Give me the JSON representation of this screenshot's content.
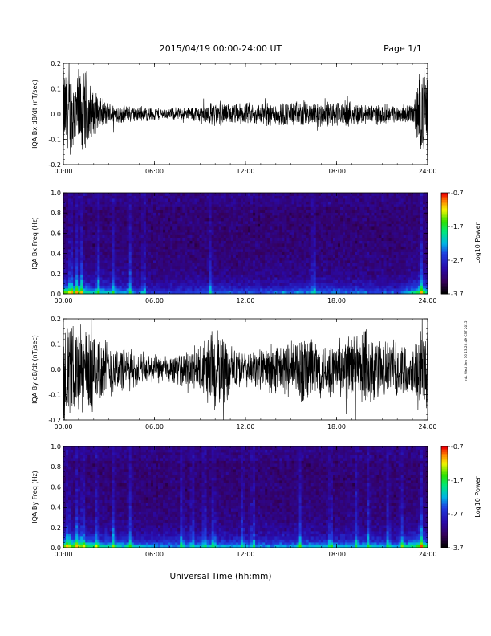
{
  "header": {
    "date_range": "2015/04/19  00:00-24:00 UT",
    "page": "Page 1/1"
  },
  "footer": {
    "xaxis_title": "Universal Time (hh:mm)",
    "side_stamp": "rdc Wed Sep 16 13:26:49 CST 2015"
  },
  "chart_data": [
    {
      "type": "line",
      "ylabel": "IQA Bx dB/dt (nT/sec)",
      "xlim": [
        0,
        24
      ],
      "ylim": [
        -0.2,
        0.2
      ],
      "xticks": [
        "00:00",
        "06:00",
        "12:00",
        "18:00",
        "24:00"
      ],
      "yticks": [
        "-0.2",
        "-0.1",
        "0.0",
        "0.1",
        "0.2"
      ],
      "envelope_hours": [
        0,
        0.5,
        1,
        1.5,
        2,
        3,
        4,
        5,
        6,
        7,
        8,
        9,
        10,
        11,
        12,
        13,
        14,
        15,
        16,
        17,
        18,
        19,
        20,
        21,
        22,
        23,
        23.5,
        24
      ],
      "envelope_amplitude": [
        0.2,
        0.2,
        0.2,
        0.2,
        0.09,
        0.05,
        0.04,
        0.035,
        0.03,
        0.025,
        0.03,
        0.04,
        0.055,
        0.045,
        0.05,
        0.05,
        0.055,
        0.055,
        0.06,
        0.06,
        0.055,
        0.055,
        0.045,
        0.045,
        0.04,
        0.04,
        0.2,
        0.2
      ]
    },
    {
      "type": "heatmap",
      "ylabel": "IQA Bx Freq (Hz)",
      "xlim": [
        0,
        24
      ],
      "ylim": [
        0,
        1
      ],
      "xticks": [
        "00:00",
        "06:00",
        "12:00",
        "18:00",
        "24:00"
      ],
      "yticks": [
        "0.0",
        "0.2",
        "0.4",
        "0.6",
        "0.8",
        "1.0"
      ],
      "colorbar": {
        "label": "Log10 Power",
        "ticks": [
          "-0.7",
          "-1.7",
          "-2.7",
          "-3.7"
        ],
        "range": [
          -3.7,
          -0.7
        ]
      },
      "low_freq_activity_hours": [
        0,
        1,
        2,
        4,
        6,
        8,
        10,
        12,
        14,
        16,
        18,
        20,
        22,
        23.7,
        24
      ],
      "low_freq_activity_level": [
        0.9,
        0.8,
        0.6,
        0.5,
        0.3,
        0.35,
        0.4,
        0.4,
        0.4,
        0.45,
        0.45,
        0.4,
        0.35,
        0.85,
        0.6
      ],
      "vertical_streaks_hours": [
        0.5,
        0.9,
        1.2,
        2.3,
        3.3,
        4.4,
        5.3,
        9.7,
        16.5,
        23.6
      ]
    },
    {
      "type": "line",
      "ylabel": "IQA By dB/dt (nT/sec)",
      "xlim": [
        0,
        24
      ],
      "ylim": [
        -0.2,
        0.2
      ],
      "xticks": [
        "00:00",
        "06:00",
        "12:00",
        "18:00",
        "24:00"
      ],
      "yticks": [
        "-0.2",
        "-0.1",
        "0.0",
        "0.1",
        "0.2"
      ],
      "envelope_hours": [
        0,
        0.5,
        1,
        1.5,
        2,
        3,
        4,
        5,
        6,
        7,
        8,
        9,
        10,
        11,
        12,
        13,
        14,
        15,
        16,
        17,
        18,
        19,
        20,
        21,
        22,
        23,
        23.5,
        24
      ],
      "envelope_amplitude": [
        0.2,
        0.2,
        0.2,
        0.2,
        0.2,
        0.12,
        0.1,
        0.08,
        0.06,
        0.06,
        0.07,
        0.12,
        0.2,
        0.12,
        0.07,
        0.09,
        0.12,
        0.12,
        0.18,
        0.12,
        0.12,
        0.15,
        0.2,
        0.12,
        0.12,
        0.1,
        0.2,
        0.2
      ]
    },
    {
      "type": "heatmap",
      "ylabel": "IQA By Freq (Hz)",
      "xlim": [
        0,
        24
      ],
      "ylim": [
        0,
        1
      ],
      "xticks": [
        "00:00",
        "06:00",
        "12:00",
        "18:00",
        "24:00"
      ],
      "yticks": [
        "0.0",
        "0.2",
        "0.4",
        "0.6",
        "0.8",
        "1.0"
      ],
      "colorbar": {
        "label": "Log10 Power",
        "ticks": [
          "-0.7",
          "-1.7",
          "-2.7",
          "-3.7"
        ],
        "range": [
          -3.7,
          -0.7
        ]
      },
      "low_freq_activity_hours": [
        0,
        1,
        2,
        4,
        6,
        8,
        10,
        12,
        14,
        16,
        18,
        20,
        22,
        23.7,
        24
      ],
      "low_freq_activity_level": [
        0.9,
        0.85,
        0.7,
        0.6,
        0.5,
        0.5,
        0.55,
        0.5,
        0.5,
        0.55,
        0.55,
        0.55,
        0.5,
        0.9,
        0.6
      ],
      "vertical_streaks_hours": [
        0.3,
        0.9,
        1.3,
        2.2,
        3.3,
        4.4,
        7.8,
        8.5,
        9.3,
        9.9,
        11.8,
        12.5,
        15.6,
        17.6,
        19.3,
        20.1,
        21.4,
        22.3,
        23.6
      ]
    }
  ]
}
